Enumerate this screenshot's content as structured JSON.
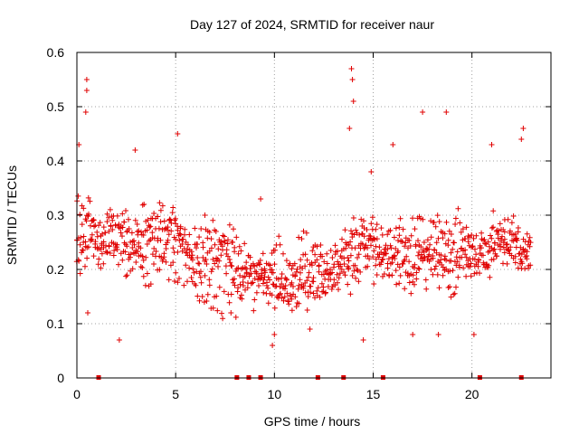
{
  "chart_data": {
    "type": "scatter",
    "title": "Day 127 of 2024, SRMTID for receiver naur",
    "xlabel": "GPS time / hours",
    "ylabel": "SRMTID / TECUs",
    "xlim": [
      0,
      24
    ],
    "ylim": [
      0,
      0.6
    ],
    "xticks": [
      0,
      5,
      10,
      15,
      20
    ],
    "xtick_labels": [
      "0",
      "5",
      "10",
      "15",
      "20"
    ],
    "yticks": [
      0,
      0.1,
      0.2,
      0.3,
      0.4,
      0.5,
      0.6
    ],
    "ytick_labels": [
      "0",
      "0.1",
      "0.2",
      "0.3",
      "0.4",
      "0.5",
      "0.6"
    ],
    "grid": true,
    "marker": "+",
    "color": "#e00000",
    "x_data_end": 23,
    "series": [
      {
        "name": "SRMTID",
        "trend": [
          {
            "x": 0.0,
            "median": 0.26,
            "spread": 0.07
          },
          {
            "x": 1.0,
            "median": 0.25,
            "spread": 0.07
          },
          {
            "x": 2.0,
            "median": 0.23,
            "spread": 0.08
          },
          {
            "x": 3.0,
            "median": 0.25,
            "spread": 0.07
          },
          {
            "x": 4.0,
            "median": 0.24,
            "spread": 0.07
          },
          {
            "x": 5.0,
            "median": 0.24,
            "spread": 0.07
          },
          {
            "x": 6.0,
            "median": 0.21,
            "spread": 0.06
          },
          {
            "x": 7.0,
            "median": 0.2,
            "spread": 0.06
          },
          {
            "x": 8.0,
            "median": 0.19,
            "spread": 0.06
          },
          {
            "x": 9.0,
            "median": 0.2,
            "spread": 0.06
          },
          {
            "x": 10.0,
            "median": 0.17,
            "spread": 0.06
          },
          {
            "x": 11.0,
            "median": 0.2,
            "spread": 0.07
          },
          {
            "x": 12.0,
            "median": 0.18,
            "spread": 0.07
          },
          {
            "x": 13.0,
            "median": 0.2,
            "spread": 0.07
          },
          {
            "x": 14.0,
            "median": 0.27,
            "spread": 0.08
          },
          {
            "x": 15.0,
            "median": 0.24,
            "spread": 0.07
          },
          {
            "x": 16.0,
            "median": 0.2,
            "spread": 0.06
          },
          {
            "x": 17.0,
            "median": 0.21,
            "spread": 0.07
          },
          {
            "x": 18.0,
            "median": 0.19,
            "spread": 0.07
          },
          {
            "x": 19.0,
            "median": 0.2,
            "spread": 0.07
          },
          {
            "x": 20.0,
            "median": 0.22,
            "spread": 0.07
          },
          {
            "x": 21.0,
            "median": 0.26,
            "spread": 0.07
          },
          {
            "x": 22.0,
            "median": 0.25,
            "spread": 0.07
          },
          {
            "x": 23.0,
            "median": 0.24,
            "spread": 0.06
          }
        ],
        "peaks": [
          {
            "x": 0.5,
            "y": 0.55
          },
          {
            "x": 0.5,
            "y": 0.53
          },
          {
            "x": 0.45,
            "y": 0.49
          },
          {
            "x": 0.1,
            "y": 0.43
          },
          {
            "x": 13.9,
            "y": 0.57
          },
          {
            "x": 13.95,
            "y": 0.55
          },
          {
            "x": 13.8,
            "y": 0.46
          },
          {
            "x": 14.0,
            "y": 0.51
          },
          {
            "x": 17.5,
            "y": 0.49
          },
          {
            "x": 18.7,
            "y": 0.49
          },
          {
            "x": 22.6,
            "y": 0.46
          },
          {
            "x": 22.5,
            "y": 0.44
          },
          {
            "x": 5.1,
            "y": 0.45
          },
          {
            "x": 2.95,
            "y": 0.42
          },
          {
            "x": 21.0,
            "y": 0.43
          },
          {
            "x": 16.0,
            "y": 0.43
          },
          {
            "x": 9.3,
            "y": 0.33
          },
          {
            "x": 14.9,
            "y": 0.38
          }
        ],
        "lows": [
          {
            "x": 2.15,
            "y": 0.07
          },
          {
            "x": 9.9,
            "y": 0.06
          },
          {
            "x": 10.0,
            "y": 0.08
          },
          {
            "x": 14.5,
            "y": 0.07
          },
          {
            "x": 20.1,
            "y": 0.08
          },
          {
            "x": 17.0,
            "y": 0.08
          },
          {
            "x": 11.8,
            "y": 0.09
          },
          {
            "x": 18.3,
            "y": 0.08
          },
          {
            "x": 7.8,
            "y": 0.12
          },
          {
            "x": 0.55,
            "y": 0.12
          }
        ],
        "zero_markers": [
          1.1,
          8.1,
          8.7,
          9.3,
          12.2,
          13.5,
          15.5,
          20.4,
          22.5
        ]
      }
    ]
  }
}
